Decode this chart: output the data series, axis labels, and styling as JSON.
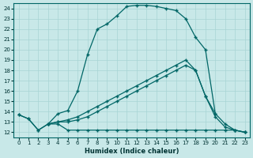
{
  "xlabel": "Humidex (Indice chaleur)",
  "bg_color": "#c8e8e8",
  "line_color": "#006666",
  "grid_color": "#a8d4d4",
  "xlim": [
    -0.5,
    23.5
  ],
  "ylim": [
    11.5,
    24.5
  ],
  "xticks": [
    0,
    1,
    2,
    3,
    4,
    5,
    6,
    7,
    8,
    9,
    10,
    11,
    12,
    13,
    14,
    15,
    16,
    17,
    18,
    19,
    20,
    21,
    22,
    23
  ],
  "yticks": [
    12,
    13,
    14,
    15,
    16,
    17,
    18,
    19,
    20,
    21,
    22,
    23,
    24
  ],
  "line_flat": {
    "x": [
      0,
      1,
      2,
      3,
      4,
      5,
      6,
      7,
      8,
      9,
      10,
      11,
      12,
      13,
      14,
      15,
      16,
      17,
      18,
      19,
      20,
      21,
      22,
      23
    ],
    "y": [
      13.7,
      13.3,
      12.2,
      12.8,
      12.8,
      12.2,
      12.2,
      12.2,
      12.2,
      12.2,
      12.2,
      12.2,
      12.2,
      12.2,
      12.2,
      12.2,
      12.2,
      12.2,
      12.2,
      12.2,
      12.2,
      12.2,
      12.2,
      12.0
    ]
  },
  "line_upper": {
    "x": [
      0,
      1,
      2,
      3,
      4,
      5,
      6,
      7,
      8,
      9,
      10,
      11,
      12,
      13,
      14,
      15,
      16,
      17,
      18,
      19,
      20
    ],
    "y": [
      13.7,
      13.3,
      12.2,
      12.8,
      13.8,
      14.1,
      16.0,
      19.5,
      22.0,
      22.5,
      23.3,
      24.2,
      24.3,
      24.3,
      24.2,
      24.0,
      23.8,
      23.0,
      21.2,
      20.0,
      13.8
    ]
  },
  "line_mid1": {
    "x": [
      3,
      4,
      5,
      6,
      7,
      8,
      9,
      10,
      11,
      12,
      13,
      14,
      15,
      16,
      17,
      18,
      19,
      20,
      21,
      22,
      23
    ],
    "y": [
      12.8,
      13.0,
      13.2,
      13.5,
      14.0,
      14.5,
      15.0,
      15.5,
      16.0,
      16.5,
      17.0,
      17.5,
      18.0,
      18.5,
      19.0,
      18.0,
      15.5,
      13.8,
      12.8,
      12.2,
      12.0
    ]
  },
  "line_mid2": {
    "x": [
      3,
      4,
      5,
      6,
      7,
      8,
      9,
      10,
      11,
      12,
      13,
      14,
      15,
      16,
      17,
      18,
      19,
      20,
      21,
      22,
      23
    ],
    "y": [
      12.8,
      13.0,
      13.0,
      13.2,
      13.5,
      14.0,
      14.5,
      15.0,
      15.5,
      16.0,
      16.5,
      17.0,
      17.5,
      18.0,
      18.5,
      18.0,
      15.5,
      13.5,
      12.5,
      12.2,
      12.0
    ]
  }
}
